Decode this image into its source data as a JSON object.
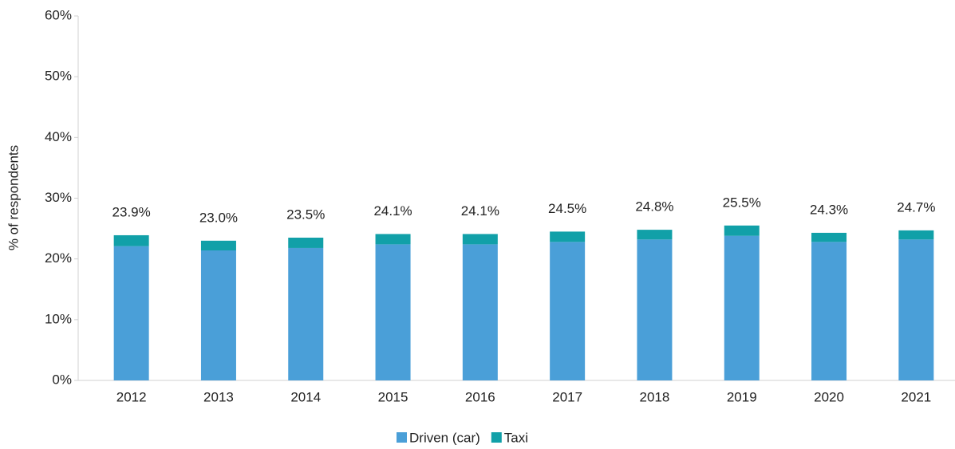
{
  "chart_data": {
    "type": "stacked_bar",
    "y_axis_label": "% of respondents",
    "categories": [
      "2012",
      "2013",
      "2014",
      "2015",
      "2016",
      "2017",
      "2018",
      "2019",
      "2020",
      "2021"
    ],
    "series": [
      {
        "name": "Driven (car)",
        "color": "#4a9fd8",
        "values": [
          22.1,
          21.4,
          21.8,
          22.4,
          22.4,
          22.8,
          23.2,
          23.8,
          22.8,
          23.2
        ]
      },
      {
        "name": "Taxi",
        "color": "#11a0a8",
        "values": [
          1.8,
          1.6,
          1.7,
          1.7,
          1.7,
          1.7,
          1.6,
          1.7,
          1.5,
          1.5
        ]
      }
    ],
    "total_labels": [
      "23.9%",
      "23.0%",
      "23.5%",
      "24.1%",
      "24.1%",
      "24.5%",
      "24.8%",
      "25.5%",
      "24.3%",
      "24.7%"
    ],
    "ylim": [
      0,
      60
    ],
    "yticks": [
      {
        "value": 0,
        "label": "0%"
      },
      {
        "value": 10,
        "label": "10%"
      },
      {
        "value": 20,
        "label": "20%"
      },
      {
        "value": 30,
        "label": "30%"
      },
      {
        "value": 40,
        "label": "40%"
      },
      {
        "value": 50,
        "label": "50%"
      },
      {
        "value": 60,
        "label": "60%"
      }
    ],
    "legend": "bottom"
  }
}
